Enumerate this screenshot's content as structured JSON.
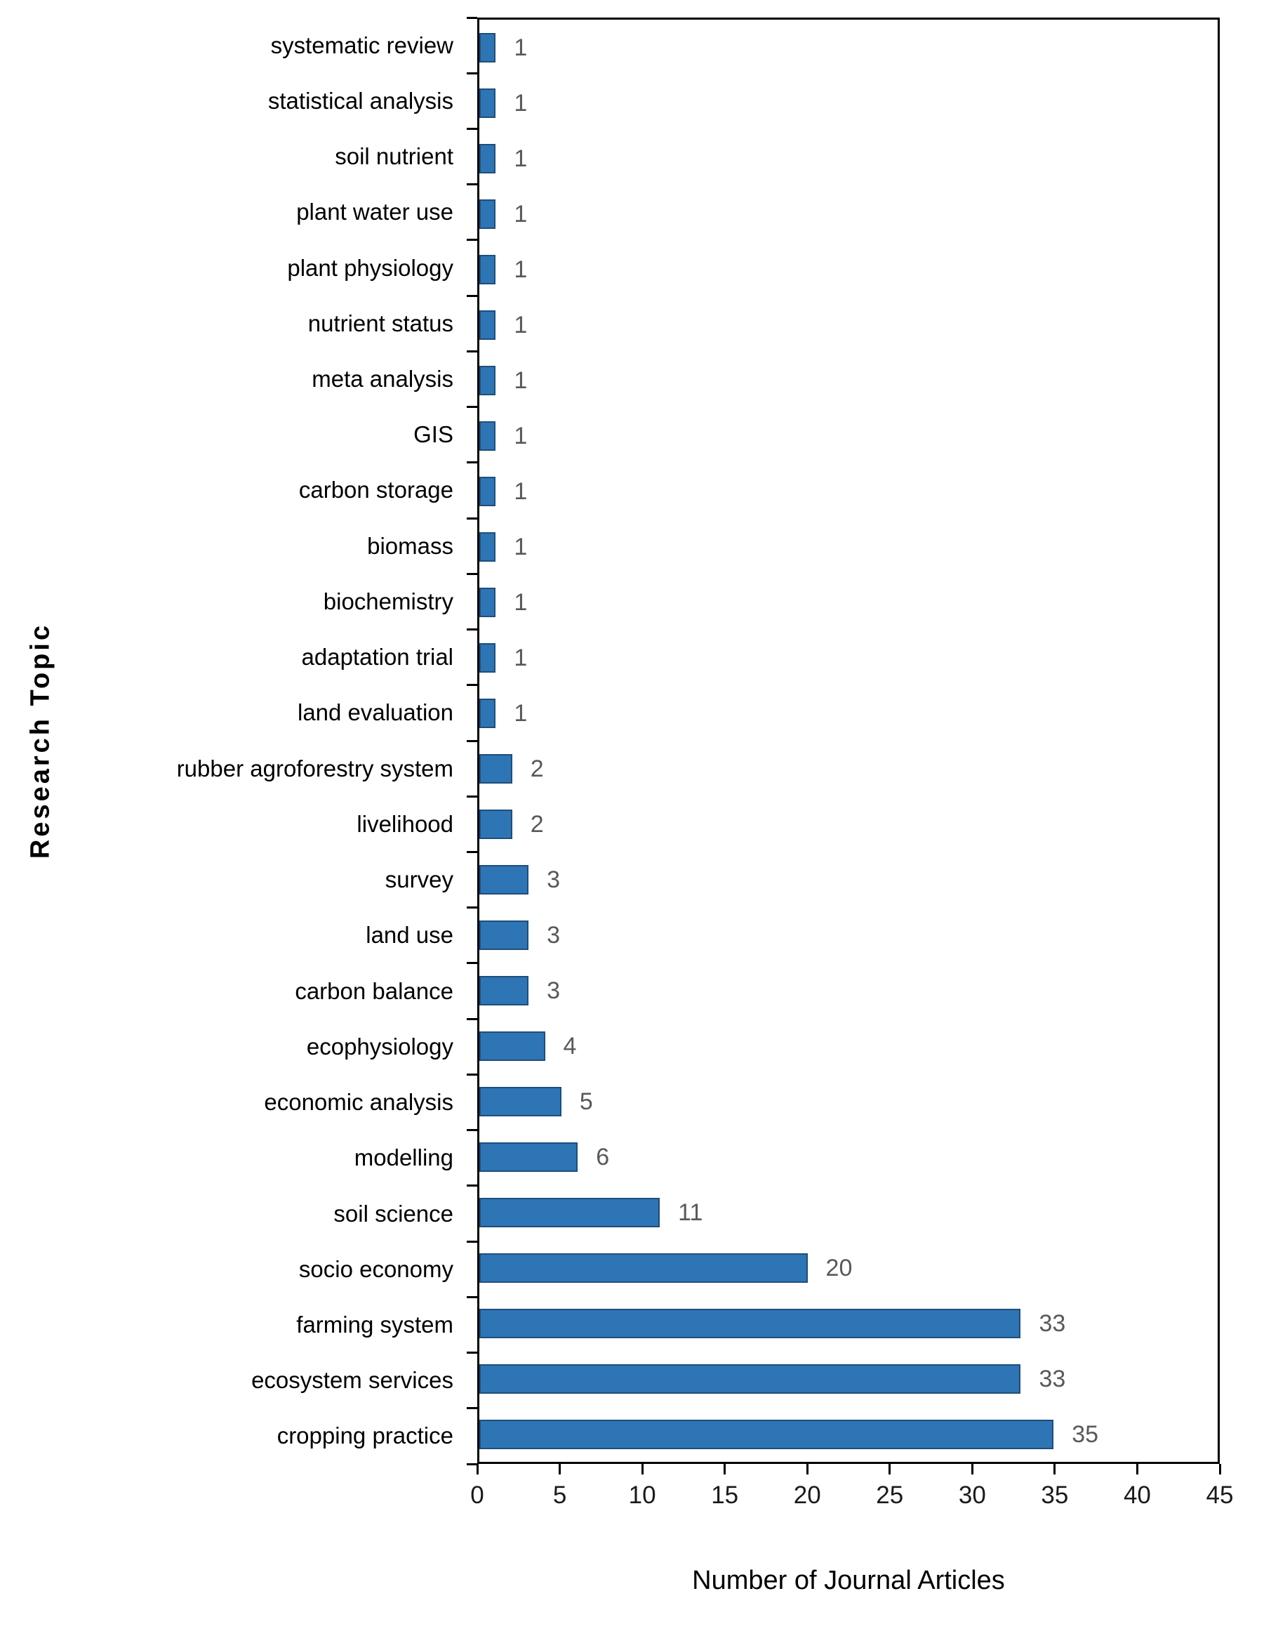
{
  "chart_data": {
    "type": "bar",
    "orientation": "horizontal",
    "title": "",
    "xlabel": "Number of Journal Articles",
    "ylabel": "Research Topic",
    "categories": [
      "systematic review",
      "statistical analysis",
      "soil nutrient",
      "plant water use",
      "plant physiology",
      "nutrient status",
      "meta analysis",
      "GIS",
      "carbon storage",
      "biomass",
      "biochemistry",
      "adaptation trial",
      "land evaluation",
      "rubber agroforestry system",
      "livelihood",
      "survey",
      "land use",
      "carbon balance",
      "ecophysiology",
      "economic analysis",
      "modelling",
      "soil science",
      "socio economy",
      "farming system",
      "ecosystem services",
      "cropping practice"
    ],
    "values": [
      1,
      1,
      1,
      1,
      1,
      1,
      1,
      1,
      1,
      1,
      1,
      1,
      1,
      2,
      2,
      3,
      3,
      3,
      4,
      5,
      6,
      11,
      20,
      33,
      33,
      35
    ],
    "xlim": [
      0,
      45
    ],
    "xticks": [
      0,
      5,
      10,
      15,
      20,
      25,
      30,
      35,
      40,
      45
    ],
    "grid": false,
    "legend": false,
    "bar_color": "#2e75b6",
    "bar_border_color": "#1f4e79",
    "value_label_color": "#595959",
    "axis_color": "#000000"
  }
}
